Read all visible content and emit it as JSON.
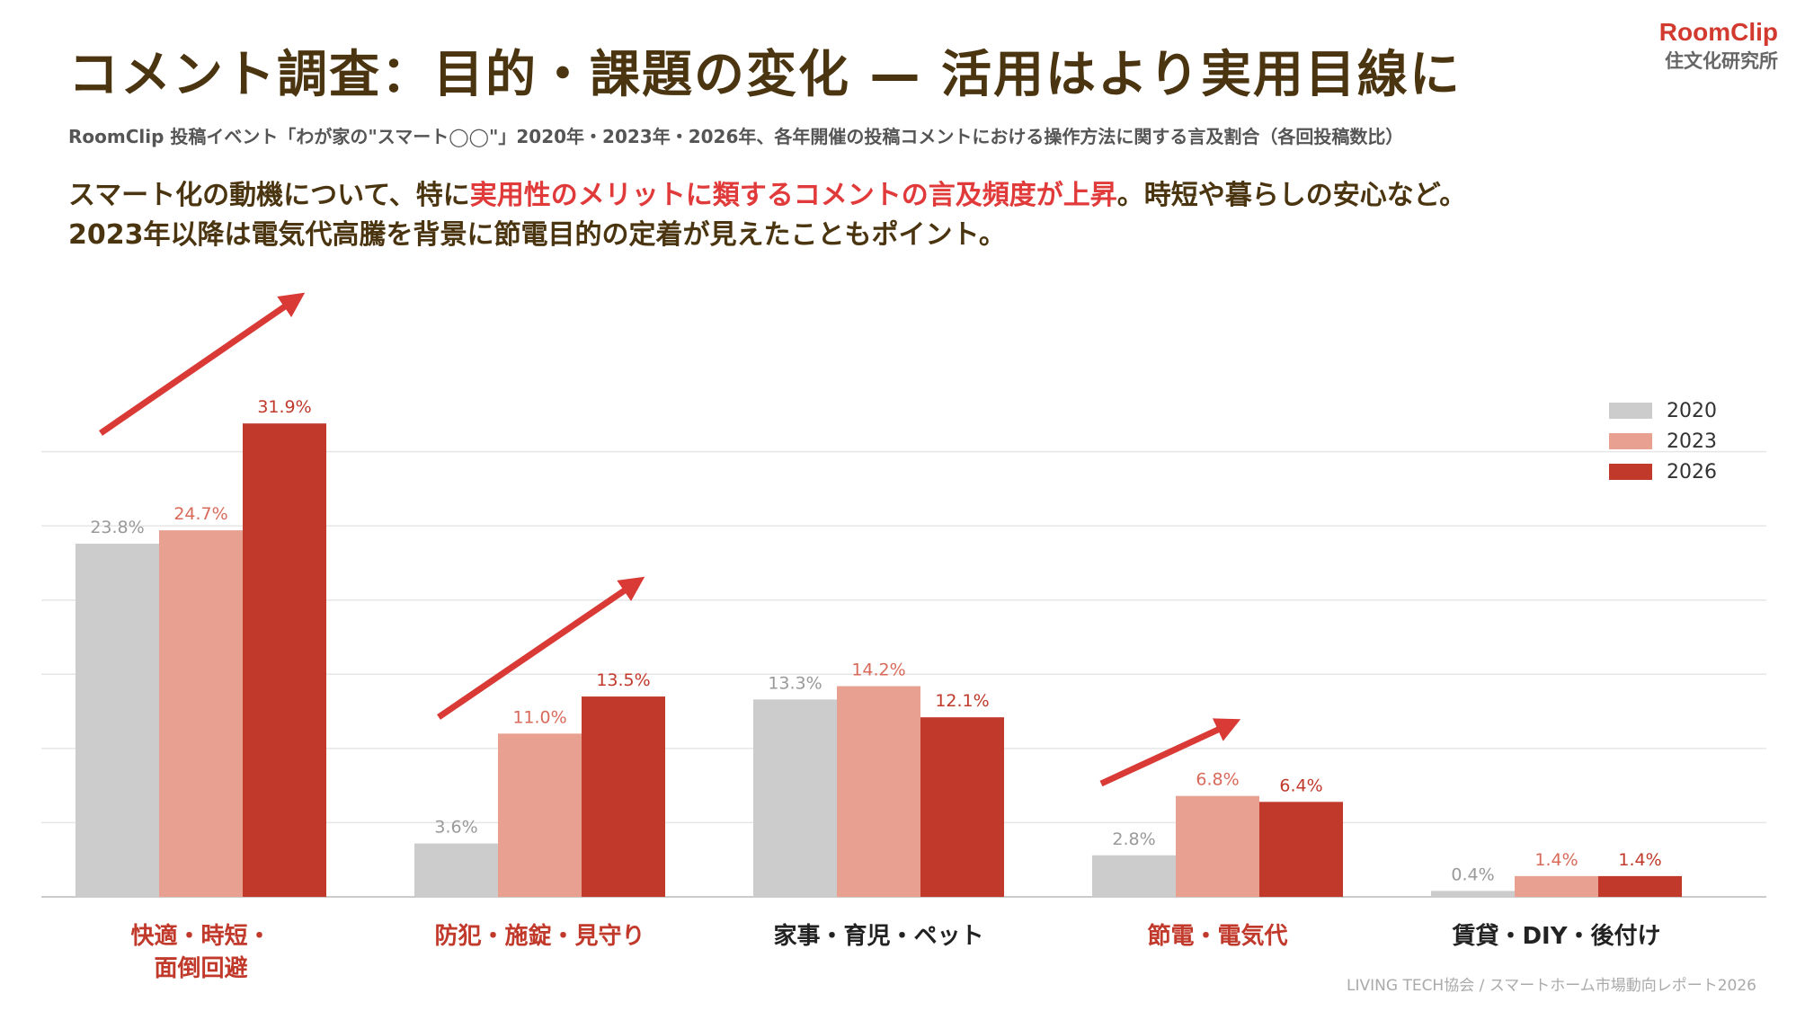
{
  "header": {
    "title": "コメント調査：目的・課題の変化 — 活用はより実用目線に",
    "subtitle": "RoomClip 投稿イベント「わが家の\"スマート◯◯\"」2020年・2023年・2026年、各年開催の投稿コメントにおける操作方法に関する言及割合（各回投稿数比）",
    "lead_line1_pre": "スマート化の動機について、特に",
    "lead_line1_highlight": "実用性のメリットに類するコメントの言及頻度が上昇",
    "lead_line1_post": "。時短や暮らしの安心など。",
    "lead_line2": "2023年以降は電気代高騰を背景に節電目的の定着が見えたこともポイント。"
  },
  "logo": {
    "brand": "RoomClip",
    "sub": "住文化研究所"
  },
  "footer": "LIVING TECH協会 / スマートホーム市場動向レポート2026",
  "colors": {
    "s2020": "#cccccc",
    "s2023": "#e8a090",
    "s2026": "#c0392b",
    "highlight": "#e03a3a",
    "label_gray": "#999999",
    "arrow": "#d93a36"
  },
  "chart_data": {
    "type": "bar",
    "categories": [
      "快適・時短・面倒回避",
      "防犯・施錠・見守り",
      "家事・育児・ペット",
      "節電・電気代",
      "賃貸・DIY・後付け"
    ],
    "category_label_lines": [
      [
        "快適・時短・",
        "面倒回避"
      ],
      [
        "防犯・施錠・見守り"
      ],
      [
        "家事・育児・ペット"
      ],
      [
        "節電・電気代"
      ],
      [
        "賃貸・DIY・後付け"
      ]
    ],
    "category_highlight": [
      true,
      true,
      false,
      true,
      false
    ],
    "series": [
      {
        "name": "2020",
        "values": [
          23.8,
          3.6,
          13.3,
          2.8,
          0.4
        ],
        "labels": [
          "23.8%",
          "3.6%",
          "13.3%",
          "2.8%",
          "0.4%"
        ]
      },
      {
        "name": "2023",
        "values": [
          24.7,
          11.0,
          14.2,
          6.8,
          1.4
        ],
        "labels": [
          "24.7%",
          "11.0%",
          "14.2%",
          "6.8%",
          "1.4%"
        ]
      },
      {
        "name": "2026",
        "values": [
          31.9,
          13.5,
          12.1,
          6.4,
          1.4
        ],
        "labels": [
          "31.9%",
          "13.5%",
          "12.1%",
          "6.4%",
          "1.4%"
        ]
      }
    ],
    "ylim": [
      0,
      35
    ],
    "grid": true,
    "legend": "top-right",
    "trend_arrows_on_categories": [
      0,
      1,
      3
    ]
  }
}
